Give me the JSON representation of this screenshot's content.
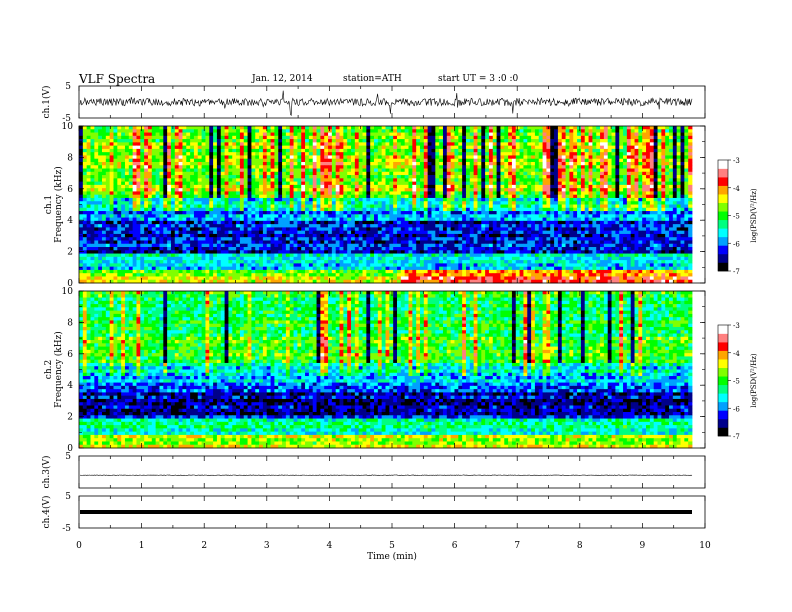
{
  "header": {
    "title": "VLF Spectra",
    "date": "Jan. 12, 2014",
    "station": "station=ATH",
    "start": "start UT = 3 :0 :0"
  },
  "chart_data": [
    {
      "type": "line",
      "name": "waveform-ch1",
      "ylabel": "ch.1(V)",
      "ylim": [
        -5,
        5
      ],
      "yticks": [
        "5",
        "-5"
      ],
      "xlim": [
        0,
        10
      ],
      "signal": "noisy waveform with spikes, amplitude about +/-2 V"
    },
    {
      "type": "heatmap",
      "name": "spectrogram-ch1",
      "ylabel_top": "ch.1",
      "ylabel": "Frequency (kHz)",
      "ylim": [
        0,
        10
      ],
      "yticks": [
        "0",
        "2",
        "4",
        "6",
        "8",
        "10"
      ],
      "xlim": [
        0,
        9.8
      ],
      "colorbar": {
        "label": "log(PSD(V²/Hz)",
        "range": [
          -7,
          -3
        ],
        "ticks": [
          "-3",
          "-4",
          "-5",
          "-6",
          "-7"
        ]
      }
    },
    {
      "type": "heatmap",
      "name": "spectrogram-ch2",
      "ylabel_top": "ch.2",
      "ylabel": "Frequency (kHz)",
      "ylim": [
        0,
        10
      ],
      "yticks": [
        "0",
        "2",
        "4",
        "6",
        "8",
        "10"
      ],
      "xlim": [
        0,
        9.8
      ],
      "colorbar": {
        "label": "log(PSD(V²/Hz)",
        "range": [
          -7,
          -3
        ],
        "ticks": [
          "-3",
          "-4",
          "-5",
          "-6",
          "-7"
        ]
      }
    },
    {
      "type": "line",
      "name": "waveform-ch3",
      "ylabel": "ch.3(V)",
      "ylim": [
        -5,
        5
      ],
      "yticks": [
        "5"
      ],
      "signal": "flat line near -1 V"
    },
    {
      "type": "line",
      "name": "waveform-ch4",
      "ylabel": "ch.4(V)",
      "ylim": [
        -5,
        5
      ],
      "yticks": [
        "5",
        "-5"
      ],
      "signal": "thick flat band near 0 V"
    }
  ],
  "xaxis": {
    "label": "Time (min)",
    "range": [
      0,
      10
    ],
    "ticks": [
      "0",
      "1",
      "2",
      "3",
      "4",
      "5",
      "6",
      "7",
      "8",
      "9",
      "10"
    ]
  },
  "colors": {
    "palette": [
      "#000000",
      "#00008b",
      "#0000ff",
      "#00a0ff",
      "#00ffff",
      "#00ff80",
      "#00ff00",
      "#80ff00",
      "#ffff00",
      "#ffa500",
      "#ff0000",
      "#ff8080",
      "#ffffff"
    ]
  }
}
